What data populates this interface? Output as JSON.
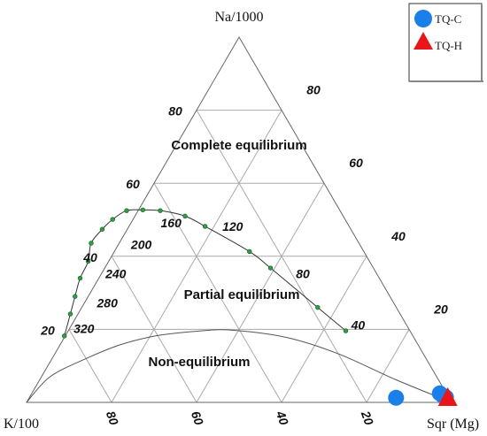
{
  "chart_data": {
    "type": "ternary",
    "vertices": {
      "top": "Na/1000",
      "left": "K/100",
      "right": "Sqr (Mg)"
    },
    "right_edge_ticks": [
      "20",
      "40",
      "60",
      "80"
    ],
    "left_edge_ticks": [
      "80",
      "60",
      "40",
      "20"
    ],
    "bottom_edge_ticks": [
      "80",
      "60",
      "40",
      "20"
    ],
    "regions": [
      "Complete equilibrium",
      "Partial equilibrium",
      "Non-equilibrium"
    ],
    "grid": true,
    "grid_step": 20,
    "equilibrium_curve": {
      "temperature_labels": [
        {
          "label": "320",
          "k": 77,
          "na": 19
        },
        {
          "label": "280",
          "k": 68,
          "na": 26
        },
        {
          "label": "240",
          "k": 62,
          "na": 34
        },
        {
          "label": "200",
          "k": 52,
          "na": 42
        },
        {
          "label": "160",
          "k": 42,
          "na": 48
        },
        {
          "label": "120",
          "k": 28,
          "na": 47
        },
        {
          "label": "80",
          "k": 18,
          "na": 34
        },
        {
          "label": "40",
          "k": 12,
          "na": 20
        }
      ],
      "points": [
        {
          "k": 82,
          "na": 18.2
        },
        {
          "k": 77.6,
          "na": 24.2
        },
        {
          "k": 74.1,
          "na": 29.0
        },
        {
          "k": 70.4,
          "na": 34.0
        },
        {
          "k": 66.2,
          "na": 38.6
        },
        {
          "k": 63.0,
          "na": 43.6
        },
        {
          "k": 58.5,
          "na": 47.4
        },
        {
          "k": 54.7,
          "na": 50.1
        },
        {
          "k": 50.2,
          "na": 52.5
        },
        {
          "k": 46.3,
          "na": 52.7
        },
        {
          "k": 42.3,
          "na": 52.5
        },
        {
          "k": 37.2,
          "na": 51.0
        },
        {
          "k": 33.9,
          "na": 48.2
        },
        {
          "k": 26.9,
          "na": 41.3
        },
        {
          "k": 24.2,
          "na": 36.8
        },
        {
          "k": 18.5,
          "na": 26.0
        },
        {
          "k": 15.1,
          "na": 19.6
        }
      ]
    },
    "non_equilibrium_curve": [
      {
        "k": 100,
        "na": 0
      },
      {
        "k": 91,
        "na": 7
      },
      {
        "k": 80,
        "na": 12
      },
      {
        "k": 70,
        "na": 15.8
      },
      {
        "k": 60,
        "na": 18.3
      },
      {
        "k": 50,
        "na": 19.5
      },
      {
        "k": 42,
        "na": 19.8
      },
      {
        "k": 30,
        "na": 17.8
      },
      {
        "k": 20,
        "na": 13.3
      },
      {
        "k": 10,
        "na": 6.2
      },
      {
        "k": 0,
        "na": 0
      }
    ],
    "series": [
      {
        "name": "TQ-C",
        "marker": "circle",
        "color": "#1a7fe8",
        "points": [
          {
            "k": 12.5,
            "na": 0.3
          },
          {
            "k": 1.6,
            "na": 1.5
          },
          {
            "k": 1.2,
            "na": 0.9
          },
          {
            "k": 0.7,
            "na": 0.4
          }
        ]
      },
      {
        "name": "TQ-H",
        "marker": "triangle",
        "color": "#e8161b",
        "points": [
          {
            "k": 0.9,
            "na": 0.0
          }
        ]
      }
    ],
    "legend_position": "top-right"
  }
}
